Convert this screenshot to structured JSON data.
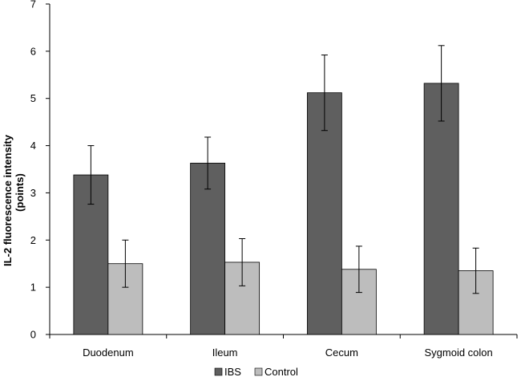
{
  "chart_data": {
    "type": "bar",
    "title": "",
    "xlabel": "",
    "ylabel": "IL-2 fluorescence intensity",
    "ylabel_sub": "(points)",
    "ylim": [
      0,
      7
    ],
    "yticks": [
      0,
      1,
      2,
      3,
      4,
      5,
      6,
      7
    ],
    "categories": [
      "Duodenum",
      "Ileum",
      "Cecum",
      "Sygmoid colon"
    ],
    "series": [
      {
        "name": "IBS",
        "color": "#5f5f5f",
        "values": [
          3.38,
          3.63,
          5.12,
          5.32
        ],
        "errors": [
          0.62,
          0.55,
          0.8,
          0.8
        ]
      },
      {
        "name": "Control",
        "color": "#bdbdbd",
        "values": [
          1.5,
          1.53,
          1.38,
          1.35
        ],
        "errors": [
          0.5,
          0.5,
          0.49,
          0.48
        ]
      }
    ],
    "legend_position": "bottom"
  }
}
